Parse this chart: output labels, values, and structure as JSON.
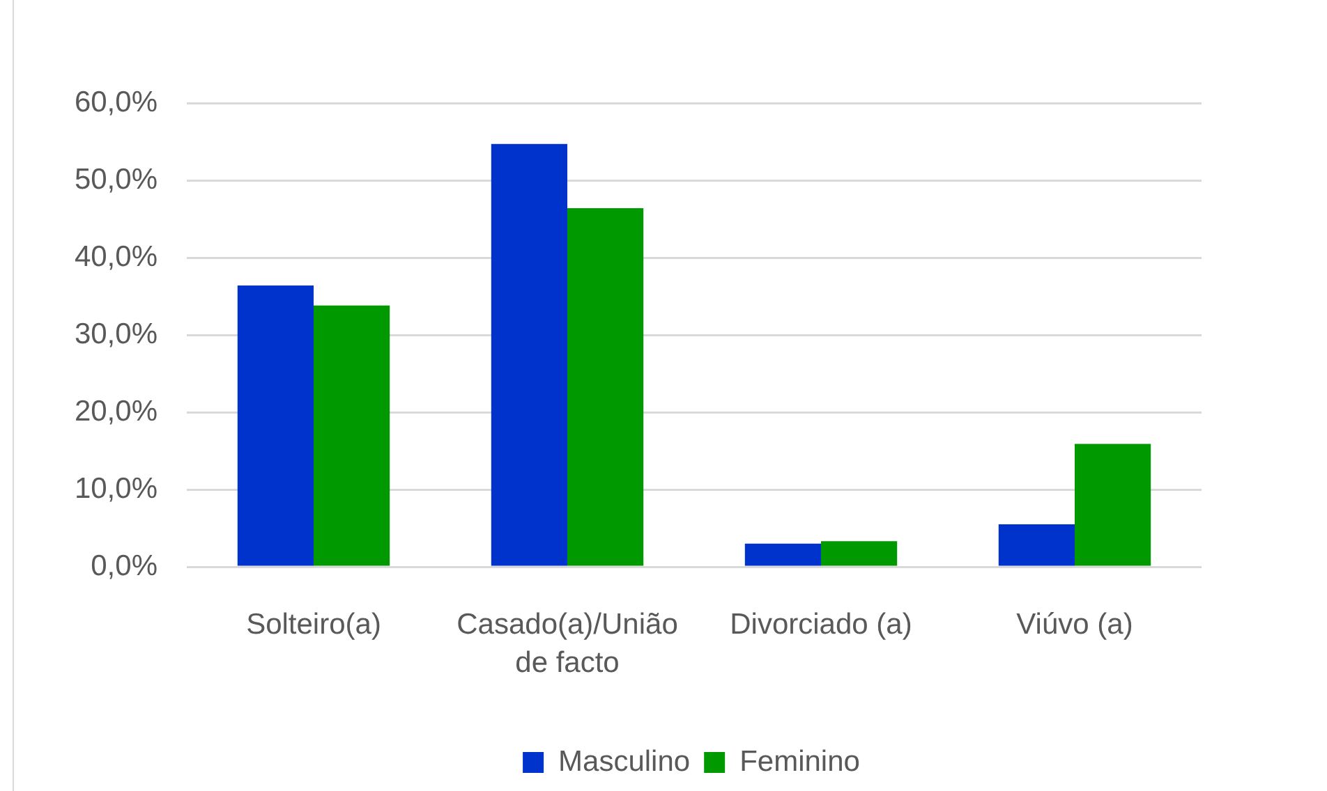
{
  "chart_data": {
    "type": "bar",
    "categories": [
      "Solteiro(a)",
      "Casado(a)/União de facto",
      "Divorciado (a)",
      "Viúvo (a)"
    ],
    "series": [
      {
        "name": "Masculino",
        "color": "#0033cc",
        "values": [
          36.4,
          54.7,
          3.0,
          5.5
        ]
      },
      {
        "name": "Feminino",
        "color": "#009900",
        "values": [
          33.8,
          46.4,
          3.3,
          15.9
        ]
      }
    ],
    "ylim": [
      0,
      60
    ],
    "yticks": [
      {
        "value": 0,
        "label": "0,0%"
      },
      {
        "value": 10,
        "label": "10,0%"
      },
      {
        "value": 20,
        "label": "20,0%"
      },
      {
        "value": 30,
        "label": "30,0%"
      },
      {
        "value": 40,
        "label": "40,0%"
      },
      {
        "value": 50,
        "label": "50,0%"
      },
      {
        "value": 60,
        "label": "60,0%"
      }
    ],
    "grid": "y",
    "legend": "bottom"
  }
}
